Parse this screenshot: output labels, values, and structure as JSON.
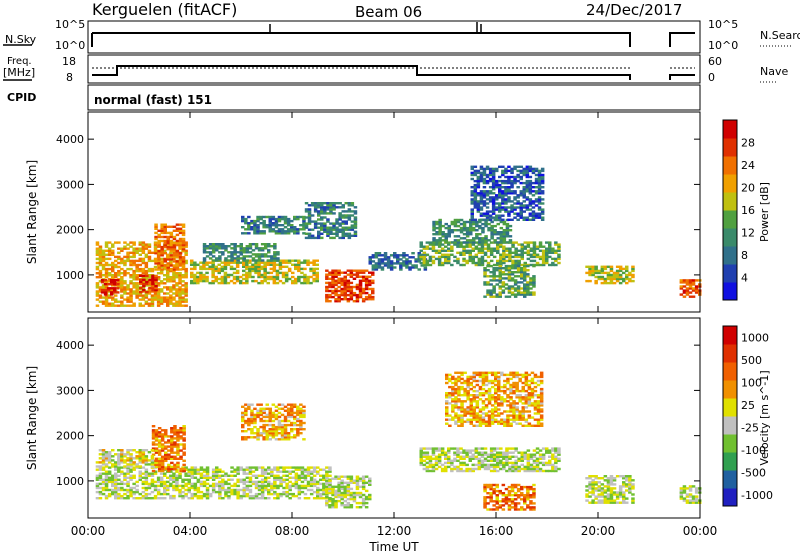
{
  "header": {
    "station": "Kerguelen (fitACF)",
    "beam": "Beam 06",
    "date": "24/Dec/2017"
  },
  "strip_labels": {
    "nsky": "N.Sky",
    "nsky_hi": "10^5",
    "nsky_lo": "10^0",
    "nsearch": "N.Search",
    "nsearch_hi": "10^5",
    "nsearch_lo": "10^0",
    "freq_line1": "Freq.",
    "freq_line2": "[MHz]",
    "freq_hi": "18",
    "freq_lo": "8",
    "nave": "Nave",
    "nave_hi": "60",
    "nave_lo": "0",
    "cpid": "CPID",
    "cpid_value": "normal (fast) 151"
  },
  "colors": {
    "power": [
      "#1010e0",
      "#2040b0",
      "#30708a",
      "#3a8a6a",
      "#50a040",
      "#c0c010",
      "#f0a000",
      "#f07000",
      "#e03000",
      "#d00000"
    ],
    "velocity": [
      "#2020c0",
      "#2060a0",
      "#30a050",
      "#70c030",
      "#c0c0c0",
      "#e0e000",
      "#f09000",
      "#f06000",
      "#e03000",
      "#d00000"
    ]
  },
  "chart_data": [
    {
      "type": "heatmap",
      "name": "power",
      "ylabel": "Slant Range [km]",
      "xlabel": "",
      "x_ticks": [
        "00:00",
        "04:00",
        "08:00",
        "12:00",
        "16:00",
        "20:00",
        "00:00"
      ],
      "y_ticks": [
        1000,
        2000,
        3000,
        4000
      ],
      "ylim": [
        180,
        4600
      ],
      "colorbar_label": "Power [dB]",
      "colorbar_ticks": [
        "4",
        "8",
        "12",
        "16",
        "20",
        "24",
        "28"
      ],
      "regions": [
        {
          "t0": 0.3,
          "t1": 3.8,
          "r0": 300,
          "r1": 1700,
          "level": 0.65
        },
        {
          "t0": 0.5,
          "t1": 1.2,
          "r0": 550,
          "r1": 900,
          "level": 0.95
        },
        {
          "t0": 2.0,
          "t1": 2.7,
          "r0": 600,
          "r1": 1000,
          "level": 0.9
        },
        {
          "t0": 2.6,
          "t1": 3.8,
          "r0": 1100,
          "r1": 2100,
          "level": 0.75
        },
        {
          "t0": 4.0,
          "t1": 9.0,
          "r0": 800,
          "r1": 1300,
          "level": 0.55
        },
        {
          "t0": 4.5,
          "t1": 7.5,
          "r0": 1300,
          "r1": 1700,
          "level": 0.35
        },
        {
          "t0": 6.0,
          "t1": 8.5,
          "r0": 1900,
          "r1": 2300,
          "level": 0.3
        },
        {
          "t0": 8.5,
          "t1": 10.5,
          "r0": 1800,
          "r1": 2600,
          "level": 0.3
        },
        {
          "t0": 9.3,
          "t1": 11.2,
          "r0": 400,
          "r1": 1100,
          "level": 0.85
        },
        {
          "t0": 11.0,
          "t1": 13.2,
          "r0": 1100,
          "r1": 1500,
          "level": 0.25
        },
        {
          "t0": 13.0,
          "t1": 18.5,
          "r0": 1200,
          "r1": 1700,
          "level": 0.45
        },
        {
          "t0": 13.5,
          "t1": 16.5,
          "r0": 1700,
          "r1": 2200,
          "level": 0.35
        },
        {
          "t0": 15.5,
          "t1": 17.5,
          "r0": 500,
          "r1": 1200,
          "level": 0.4
        },
        {
          "t0": 15.0,
          "t1": 17.8,
          "r0": 2200,
          "r1": 3400,
          "level": 0.2
        },
        {
          "t0": 19.5,
          "t1": 21.4,
          "r0": 800,
          "r1": 1200,
          "level": 0.55
        },
        {
          "t0": 23.2,
          "t1": 24.0,
          "r0": 500,
          "r1": 900,
          "level": 0.8
        }
      ]
    },
    {
      "type": "heatmap",
      "name": "velocity",
      "ylabel": "Slant Range [km]",
      "xlabel": "Time UT",
      "x_ticks": [
        "00:00",
        "04:00",
        "08:00",
        "12:00",
        "16:00",
        "20:00",
        "00:00"
      ],
      "y_ticks": [
        1000,
        2000,
        3000,
        4000
      ],
      "ylim": [
        180,
        4600
      ],
      "colorbar_label": "Velocity [m s^-1]",
      "colorbar_ticks": [
        "1000",
        "500",
        "100",
        "25",
        "-25",
        "-100",
        "-500",
        "-1000"
      ],
      "regions": [
        {
          "t0": 0.3,
          "t1": 9.5,
          "r0": 600,
          "r1": 1300,
          "level": 0.45
        },
        {
          "t0": 2.5,
          "t1": 3.8,
          "r0": 1200,
          "r1": 2200,
          "level": 0.7
        },
        {
          "t0": 0.3,
          "t1": 2.5,
          "r0": 1300,
          "r1": 1700,
          "level": 0.5
        },
        {
          "t0": 6.0,
          "t1": 8.5,
          "r0": 1900,
          "r1": 2700,
          "level": 0.62
        },
        {
          "t0": 9.3,
          "t1": 11.0,
          "r0": 400,
          "r1": 1100,
          "level": 0.45
        },
        {
          "t0": 13.0,
          "t1": 18.5,
          "r0": 1200,
          "r1": 1700,
          "level": 0.45
        },
        {
          "t0": 15.5,
          "t1": 17.5,
          "r0": 350,
          "r1": 900,
          "level": 0.72
        },
        {
          "t0": 14.0,
          "t1": 17.8,
          "r0": 2200,
          "r1": 3400,
          "level": 0.62
        },
        {
          "t0": 19.5,
          "t1": 21.4,
          "r0": 500,
          "r1": 1100,
          "level": 0.45
        },
        {
          "t0": 23.2,
          "t1": 24.0,
          "r0": 500,
          "r1": 900,
          "level": 0.45
        }
      ]
    }
  ]
}
